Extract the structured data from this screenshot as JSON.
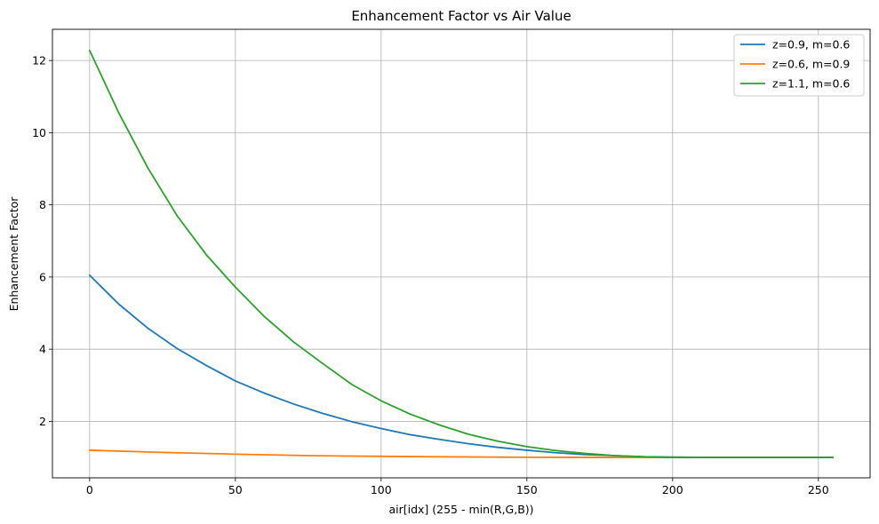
{
  "chart_data": {
    "type": "line",
    "title": "Enhancement Factor vs Air Value",
    "xlabel": "air[idx] (255 - min(R,G,B))",
    "ylabel": "Enhancement Factor",
    "xlim": [
      -12.75,
      267.75
    ],
    "ylim": [
      0.435,
      12.865
    ],
    "xticks": [
      0,
      50,
      100,
      150,
      200,
      250
    ],
    "yticks": [
      2,
      4,
      6,
      8,
      10,
      12
    ],
    "xtick_labels": [
      "0",
      "50",
      "100",
      "150",
      "200",
      "250"
    ],
    "ytick_labels": [
      "2",
      "4",
      "6",
      "8",
      "10",
      "12"
    ],
    "grid": true,
    "legend_position": "top-right",
    "series": [
      {
        "name": "z=0.9, m=0.6",
        "color": "#1f77b4",
        "x": [
          0,
          10,
          20,
          30,
          40,
          50,
          60,
          70,
          80,
          90,
          100,
          110,
          120,
          130,
          140,
          150,
          160,
          170,
          180,
          190,
          200,
          210,
          220,
          230,
          240,
          255
        ],
        "y": [
          6.05,
          5.25,
          4.58,
          4.02,
          3.55,
          3.12,
          2.78,
          2.48,
          2.22,
          1.99,
          1.8,
          1.63,
          1.5,
          1.38,
          1.28,
          1.2,
          1.13,
          1.08,
          1.05,
          1.02,
          1.01,
          1.0,
          1.0,
          1.0,
          1.0,
          1.0
        ]
      },
      {
        "name": "z=0.6, m=0.9",
        "color": "#ff7f0e",
        "x": [
          0,
          25,
          50,
          75,
          100,
          125,
          150,
          175,
          200,
          225,
          255
        ],
        "y": [
          1.2,
          1.14,
          1.09,
          1.05,
          1.03,
          1.015,
          1.005,
          1.0,
          1.0,
          1.0,
          1.0
        ]
      },
      {
        "name": "z=1.1, m=0.6",
        "color": "#2ca02c",
        "x": [
          0,
          10,
          20,
          30,
          40,
          50,
          60,
          70,
          80,
          90,
          100,
          110,
          120,
          130,
          140,
          150,
          160,
          170,
          180,
          190,
          200,
          210,
          220,
          230,
          240,
          255
        ],
        "y": [
          12.28,
          10.55,
          9.02,
          7.7,
          6.62,
          5.72,
          4.9,
          4.2,
          3.6,
          3.02,
          2.57,
          2.2,
          1.9,
          1.64,
          1.45,
          1.3,
          1.19,
          1.11,
          1.05,
          1.02,
          1.0,
          1.0,
          1.0,
          1.0,
          1.0,
          1.0
        ]
      }
    ]
  }
}
